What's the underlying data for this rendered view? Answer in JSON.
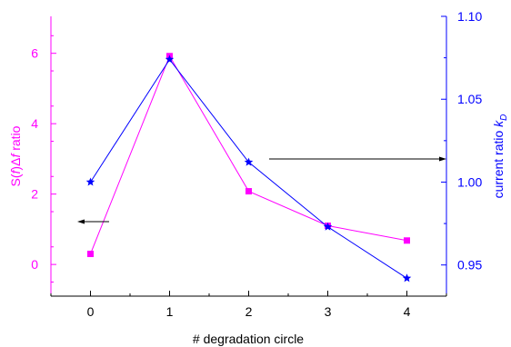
{
  "chart_data": {
    "type": "line",
    "xlabel": "# degradation circle",
    "x_ticks": [
      "0",
      "1",
      "2",
      "3",
      "4"
    ],
    "xlim": [
      -0.5,
      4.5
    ],
    "left_axis": {
      "label_parts": [
        "S(",
        "f",
        ")",
        "Δ",
        "f",
        " ratio"
      ],
      "ylim": [
        -0.9,
        7.05
      ],
      "ticks": [
        0,
        2,
        4,
        6
      ],
      "color": "#ff00ff"
    },
    "right_axis": {
      "label_parts": [
        "current ratio ",
        "k",
        "D"
      ],
      "ylim": [
        0.9312,
        1.1
      ],
      "ticks": [
        0.95,
        1.0,
        1.05,
        1.1
      ],
      "tick_labels": [
        "0.95",
        "1.00",
        "1.05",
        "1.10"
      ],
      "color": "#0000ff"
    },
    "series": [
      {
        "axis": "left",
        "marker": "square",
        "color": "#ff00ff",
        "x": [
          0,
          1,
          2,
          3,
          4
        ],
        "y": [
          0.3,
          5.92,
          2.08,
          1.1,
          0.68
        ]
      },
      {
        "axis": "right",
        "marker": "star",
        "color": "#0000ff",
        "x": [
          0,
          1,
          2,
          3,
          4
        ],
        "y": [
          1.0,
          1.074,
          1.012,
          0.973,
          0.942
        ]
      }
    ],
    "annotations": [
      {
        "type": "arrow",
        "direction": "left",
        "points_to": "left axis"
      },
      {
        "type": "arrow",
        "direction": "right",
        "points_to": "right axis"
      }
    ],
    "grid": false,
    "legend": "none"
  }
}
